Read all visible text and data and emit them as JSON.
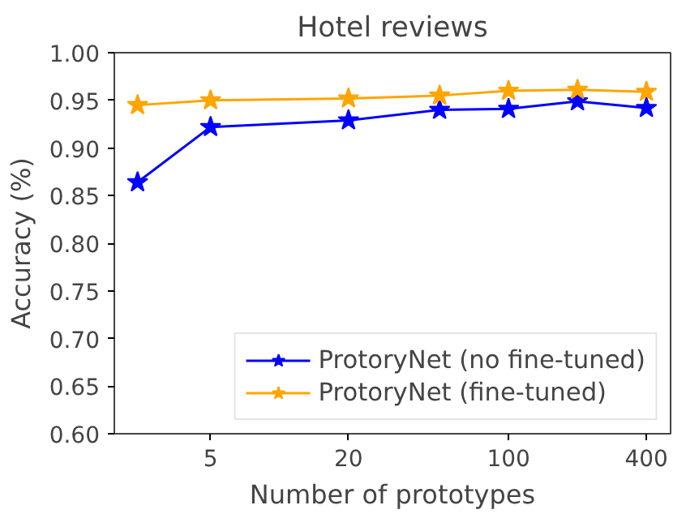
{
  "chart_data": {
    "type": "line",
    "title": "Hotel reviews",
    "xlabel": "Number of prototypes",
    "ylabel": "Accuracy (%)",
    "x": [
      2.4,
      5,
      20,
      50,
      100,
      200,
      400
    ],
    "series": [
      {
        "name": "ProtoryNet (no fine-tuned)",
        "color": "#0000ff",
        "values": [
          0.864,
          0.922,
          0.929,
          0.94,
          0.941,
          0.949,
          0.942
        ]
      },
      {
        "name": "ProtoryNet (fine-tuned)",
        "color": "#ffa500",
        "values": [
          0.945,
          0.95,
          0.952,
          0.955,
          0.96,
          0.961,
          0.959
        ]
      }
    ],
    "log": "x",
    "xlim": [
      1.9,
      510
    ],
    "ylim": [
      0.6,
      1.0
    ],
    "xticks": [
      5,
      20,
      100,
      400
    ],
    "yticks": [
      {
        "value": 0.6,
        "label": "0.60"
      },
      {
        "value": 0.65,
        "label": "0.65"
      },
      {
        "value": 0.7,
        "label": "0.70"
      },
      {
        "value": 0.75,
        "label": "0.75"
      },
      {
        "value": 0.8,
        "label": "0.80"
      },
      {
        "value": 0.85,
        "label": "0.85"
      },
      {
        "value": 0.9,
        "label": "0.90"
      },
      {
        "value": 0.95,
        "label": "0.95"
      },
      {
        "value": 1.0,
        "label": "1.00"
      }
    ],
    "marker": "star",
    "grid": false,
    "legend": "bottom right"
  }
}
